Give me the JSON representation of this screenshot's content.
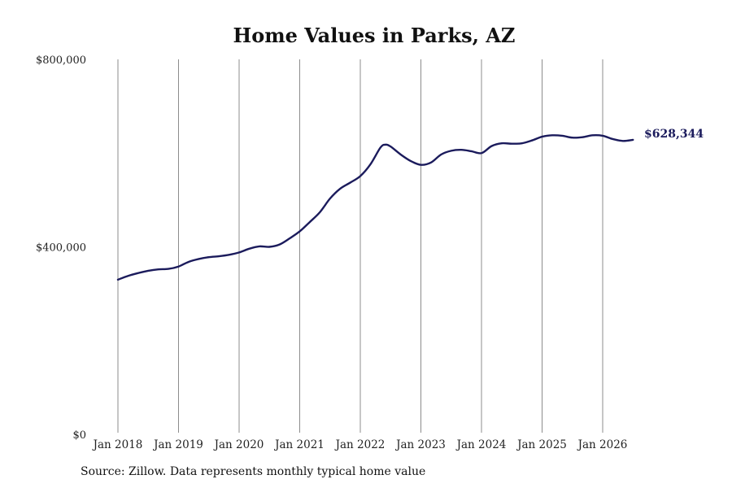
{
  "source_note": "Source: Zillow. Data represents monthly typical home value",
  "chart_data": {
    "type": "line",
    "title": "Home Values in Parks, AZ",
    "xlabel": "",
    "ylabel": "",
    "ylim": [
      0,
      800000
    ],
    "y_ticks": [
      {
        "value": 0,
        "label": "$0"
      },
      {
        "value": 400000,
        "label": "$400,000"
      },
      {
        "value": 800000,
        "label": "$800,000"
      }
    ],
    "x_ticks": [
      {
        "value": "2018-01",
        "label": "Jan 2018"
      },
      {
        "value": "2019-01",
        "label": "Jan 2019"
      },
      {
        "value": "2020-01",
        "label": "Jan 2020"
      },
      {
        "value": "2021-01",
        "label": "Jan 2021"
      },
      {
        "value": "2022-01",
        "label": "Jan 2022"
      },
      {
        "value": "2023-01",
        "label": "Jan 2023"
      },
      {
        "value": "2024-01",
        "label": "Jan 2024"
      },
      {
        "value": "2025-01",
        "label": "Jan 2025"
      },
      {
        "value": "2026-01",
        "label": "Jan 2026"
      }
    ],
    "grid": {
      "vertical": true,
      "horizontal": false
    },
    "line_color": "#1b1b5c",
    "end_label": "$628,344",
    "series": [
      {
        "points": [
          [
            "2018-01",
            330000
          ],
          [
            "2018-03",
            338000
          ],
          [
            "2018-05",
            344000
          ],
          [
            "2018-07",
            349000
          ],
          [
            "2018-09",
            352000
          ],
          [
            "2018-11",
            353000
          ],
          [
            "2019-01",
            358000
          ],
          [
            "2019-03",
            368000
          ],
          [
            "2019-05",
            374000
          ],
          [
            "2019-07",
            378000
          ],
          [
            "2019-09",
            380000
          ],
          [
            "2019-11",
            383000
          ],
          [
            "2020-01",
            388000
          ],
          [
            "2020-03",
            396000
          ],
          [
            "2020-05",
            401000
          ],
          [
            "2020-07",
            400000
          ],
          [
            "2020-09",
            405000
          ],
          [
            "2020-11",
            418000
          ],
          [
            "2021-01",
            433000
          ],
          [
            "2021-03",
            453000
          ],
          [
            "2021-05",
            474000
          ],
          [
            "2021-07",
            503000
          ],
          [
            "2021-09",
            524000
          ],
          [
            "2021-11",
            537000
          ],
          [
            "2022-01",
            551000
          ],
          [
            "2022-03",
            576000
          ],
          [
            "2022-05",
            612000
          ],
          [
            "2022-06",
            618000
          ],
          [
            "2022-07",
            614000
          ],
          [
            "2022-09",
            597000
          ],
          [
            "2022-11",
            583000
          ],
          [
            "2023-01",
            575000
          ],
          [
            "2023-03",
            580000
          ],
          [
            "2023-05",
            597000
          ],
          [
            "2023-07",
            605000
          ],
          [
            "2023-09",
            607000
          ],
          [
            "2023-11",
            604000
          ],
          [
            "2024-01",
            600000
          ],
          [
            "2024-03",
            615000
          ],
          [
            "2024-05",
            621000
          ],
          [
            "2024-07",
            620000
          ],
          [
            "2024-09",
            621000
          ],
          [
            "2024-11",
            627000
          ],
          [
            "2025-01",
            635000
          ],
          [
            "2025-03",
            638000
          ],
          [
            "2025-05",
            637000
          ],
          [
            "2025-07",
            633000
          ],
          [
            "2025-09",
            634000
          ],
          [
            "2025-11",
            638000
          ],
          [
            "2026-01",
            637000
          ],
          [
            "2026-03",
            630000
          ],
          [
            "2026-05",
            626000
          ],
          [
            "2026-07",
            628344
          ]
        ]
      }
    ]
  }
}
